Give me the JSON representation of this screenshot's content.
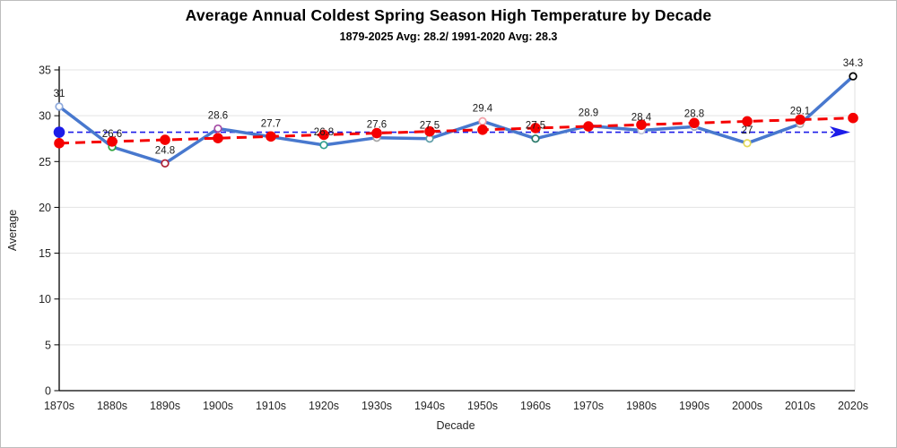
{
  "chart_data": {
    "type": "line",
    "title": "Average Annual Coldest Spring Season High Temperature by Decade",
    "subtitle": "1879-2025 Avg: 28.2/ 1991-2020 Avg: 28.3",
    "xlabel": "Decade",
    "ylabel": "Average",
    "ylim": [
      0,
      35
    ],
    "yticks": [
      0,
      5,
      10,
      15,
      20,
      25,
      30,
      35
    ],
    "grid": "horizontal",
    "legend": "none",
    "categories": [
      "1870s",
      "1880s",
      "1890s",
      "1900s",
      "1910s",
      "1920s",
      "1930s",
      "1940s",
      "1950s",
      "1960s",
      "1970s",
      "1980s",
      "1990s",
      "2000s",
      "2010s",
      "2020s"
    ],
    "values": [
      31,
      26.6,
      24.8,
      28.6,
      27.7,
      26.8,
      27.6,
      27.5,
      29.4,
      27.5,
      28.9,
      28.4,
      28.8,
      27,
      29.1,
      34.3
    ],
    "point_labels": [
      "31",
      "26.6",
      "24.8",
      "28.6",
      "27.7",
      "26.8",
      "27.6",
      "27.5",
      "29.4",
      "27.5",
      "28.9",
      "28.4",
      "28.8",
      "27",
      "29.1",
      "34.3"
    ],
    "line_color": "#4878CE",
    "marker_fill": "#ffffff",
    "marker_colors": [
      "#8FAADC",
      "#2FA43C",
      "#B02438",
      "#A54CA5",
      "#B0B0B0",
      "#2E9E8E",
      "#A6A6A6",
      "#5F9EA8",
      "#F2A0A8",
      "#2B7A6B",
      "#B0B0B0",
      "#BFC5D6",
      "#9DA7C9",
      "#E3D95A",
      "#B0B0B0",
      "#000000"
    ],
    "trendline": {
      "color": "#F50000",
      "start": 27.0,
      "end": 29.75,
      "dashed": true,
      "show_markers": true
    },
    "average_line": {
      "value": 28.2,
      "color": "#1C1CE8",
      "dashed": true,
      "arrow_end": true,
      "start_dot": true
    },
    "axis_color": "#000000",
    "gridline_color": "#E3E3E3",
    "tick_label_color": "#262626",
    "data_label_color": "#1A1A1A"
  }
}
